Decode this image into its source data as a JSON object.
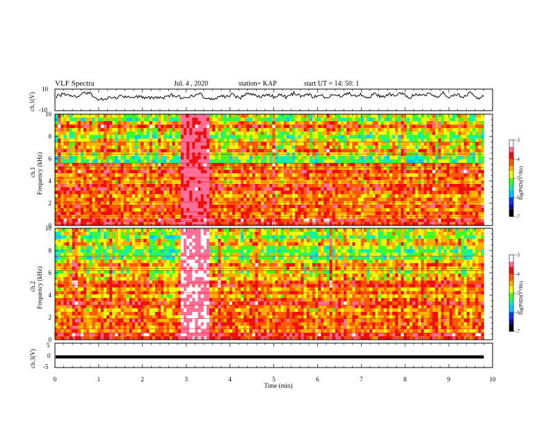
{
  "header": {
    "title": "VLF Spectra",
    "date": "Jul. 4 , 2020",
    "station": "station= KAP",
    "start": "start UT =  14: 50: 1"
  },
  "colors": {
    "scale": [
      "#000000",
      "#1010a0",
      "#0a36ff",
      "#00c8ff",
      "#10f0b0",
      "#40ff20",
      "#e8ff10",
      "#ffb000",
      "#ff5a00",
      "#f01010",
      "#ff6e96",
      "#ffffff"
    ],
    "trace": "#000000",
    "frame": "#000000"
  },
  "chart_data": [
    {
      "name": "ch1-waveform",
      "type": "line",
      "ylabel": "ch.1(V)",
      "ylim": [
        -10,
        10
      ],
      "yticks": [
        "10",
        "-10"
      ],
      "xlim": [
        0,
        10
      ],
      "x_end": 9.8,
      "values": [
        3.0,
        5.2,
        4.1,
        2.8,
        6.5,
        6.0,
        1.0,
        0.5,
        1.8,
        2.5,
        3.2,
        2.8,
        3.0,
        2.2,
        1.5,
        1.8,
        2.6,
        4.3,
        2.9,
        1.2,
        3.8,
        6.2,
        2.0,
        0.8,
        3.6,
        2.4,
        4.8,
        1.5,
        5.5,
        6.0,
        2.2,
        4.8,
        3.0,
        5.1,
        1.9,
        6.3,
        3.2,
        5.8,
        2.7,
        4.4,
        1.6,
        5.9,
        2.5,
        6.6,
        3.6,
        5.0,
        2.4,
        6.1,
        1.8,
        5.3,
        3.9,
        6.8,
        2.2,
        5.0,
        3.4,
        7.5,
        1.4,
        6.0,
        2.5,
        5.4,
        3.1,
        6.4,
        1.8,
        3.2
      ]
    },
    {
      "name": "ch1-spectrogram",
      "type": "heatmap",
      "ylabel": "ch.1\nFrequency (kHz)",
      "ylim": [
        0,
        10
      ],
      "yticks": [
        "0",
        "2",
        "4",
        "6",
        "8",
        "10"
      ],
      "xlim": [
        0,
        10
      ],
      "x_end": 9.8,
      "colorbar": {
        "label": "log(PSD)(V²/Hz)",
        "range": [
          -7,
          -3
        ],
        "ticks": [
          "-3",
          "-4",
          "-5",
          "-6",
          "-7"
        ]
      },
      "profile": [
        -4.9,
        -5.2,
        -4.6,
        -4.1,
        -4.6,
        -4.9,
        -5.3,
        -4.9,
        -4.6,
        -4.7,
        -4.2,
        -4.9,
        -5.2,
        -5.3,
        -4.2,
        -4.4,
        -3.9,
        -4.4,
        -4.3,
        -4.6,
        -4.1,
        -3.9,
        -4.2,
        -4.5,
        -4.3,
        -4.4,
        -4.0,
        -4.3,
        -4.2,
        -4.4,
        -3.8,
        -4.0
      ],
      "burst": {
        "t": [
          2.9,
          3.55
        ],
        "level": -3.6
      },
      "lines_khz": [
        0.1,
        0.4,
        0.8,
        1.2,
        2.1,
        3.9,
        4.3,
        5.2,
        5.6,
        6.4,
        7.5
      ]
    },
    {
      "name": "ch2-spectrogram",
      "type": "heatmap",
      "ylabel": "ch.2\nFrequency (kHz)",
      "ylim": [
        0,
        10
      ],
      "yticks": [
        "0",
        "2",
        "4",
        "6",
        "8",
        "10"
      ],
      "xlim": [
        0,
        10
      ],
      "x_end": 9.8,
      "colorbar": {
        "label": "log(PSD)(V²/Hz)",
        "range": [
          -7,
          -3
        ],
        "ticks": [
          "-3",
          "-4",
          "-5",
          "-6",
          "-7"
        ]
      },
      "profile": [
        -4.8,
        -4.9,
        -5.2,
        -4.7,
        -4.6,
        -5.0,
        -5.3,
        -5.1,
        -5.2,
        -4.7,
        -4.3,
        -4.7,
        -4.9,
        -4.6,
        -4.6,
        -4.2,
        -4.0,
        -4.5,
        -4.3,
        -4.6,
        -4.2,
        -3.9,
        -4.2,
        -4.5,
        -4.3,
        -4.4,
        -4.1,
        -4.2,
        -4.3,
        -4.4,
        -3.8,
        -4.0
      ],
      "burst": {
        "t": [
          2.9,
          3.55
        ],
        "level": -3.4
      },
      "lines_khz": [
        0.2,
        0.6,
        1.0,
        1.9,
        3.1,
        4.2,
        4.9,
        5.1,
        6.2,
        6.4,
        7.5
      ]
    },
    {
      "name": "ch3-waveform",
      "type": "line",
      "ylabel": "ch.3(V)",
      "ylim": [
        -5,
        5
      ],
      "yticks": [
        "5",
        "0",
        "-5"
      ],
      "xlim": [
        0,
        10
      ],
      "x_end": 9.8,
      "xlabel": "Time (min)",
      "xticks": [
        "0",
        "1",
        "2",
        "3",
        "4",
        "5",
        "6",
        "7",
        "8",
        "9",
        "10"
      ],
      "band": [
        -1.0,
        0.0
      ]
    }
  ]
}
